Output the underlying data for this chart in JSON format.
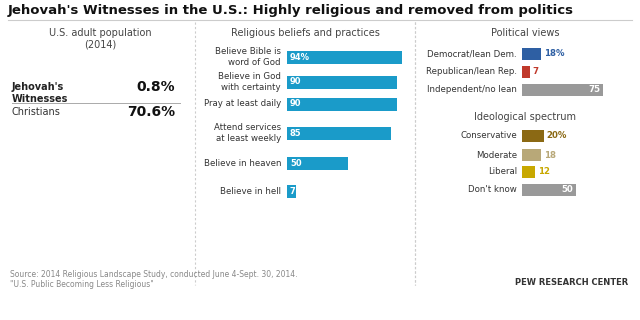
{
  "title": "Jehovah's Witnesses in the U.S.: Highly religious and removed from politics",
  "background_color": "#ffffff",
  "left_panel": {
    "header": "U.S. adult population\n(2014)",
    "rows": [
      {
        "label": "Jehovah's\nWitnesses",
        "value": "0.8%"
      },
      {
        "label": "Christians",
        "value": "70.6%"
      }
    ]
  },
  "mid_panel": {
    "header": "Religious beliefs and practices",
    "bars": [
      {
        "label": "Believe Bible is\nword of God",
        "value": 94,
        "display": "94%"
      },
      {
        "label": "Believe in God\nwith certainty",
        "value": 90,
        "display": "90"
      },
      {
        "label": "Pray at least daily",
        "value": 90,
        "display": "90"
      },
      {
        "label": "Attend services\nat least weekly",
        "value": 85,
        "display": "85"
      },
      {
        "label": "Believe in heaven",
        "value": 50,
        "display": "50"
      },
      {
        "label": "Believe in hell",
        "value": 7,
        "display": "7"
      }
    ],
    "bar_color": "#1a9bc9",
    "max_val": 100
  },
  "right_panel": {
    "political_header": "Political views",
    "political_bars": [
      {
        "label": "Democrat/lean Dem.",
        "value": 18,
        "display": "18%",
        "bar_color": "#2e5fa3",
        "text_color": "#2e5fa3",
        "text_inside": false
      },
      {
        "label": "Republican/lean Rep.",
        "value": 7,
        "display": "7",
        "bar_color": "#c0392b",
        "text_color": "#c0392b",
        "text_inside": false
      },
      {
        "label": "Independent/no lean",
        "value": 75,
        "display": "75",
        "bar_color": "#999999",
        "text_color": "#ffffff",
        "text_inside": true
      }
    ],
    "ideo_header": "Ideological spectrum",
    "ideo_bars": [
      {
        "label": "Conservative",
        "value": 20,
        "display": "20%",
        "bar_color": "#8b6914",
        "text_color": "#8b6914",
        "text_inside": false
      },
      {
        "label": "Moderate",
        "value": 18,
        "display": "18",
        "bar_color": "#b8a878",
        "text_color": "#b8a878",
        "text_inside": false
      },
      {
        "label": "Liberal",
        "value": 12,
        "display": "12",
        "bar_color": "#c8a800",
        "text_color": "#c8a800",
        "text_inside": false
      },
      {
        "label": "Don't know",
        "value": 50,
        "display": "50",
        "bar_color": "#999999",
        "text_color": "#ffffff",
        "text_inside": true
      }
    ],
    "max_val": 100
  },
  "source_text": "Source: 2014 Religious Landscape Study, conducted June 4-Sept. 30, 2014.\n\"U.S. Public Becoming Less Religious\"",
  "pew_text": "PEW RESEARCH CENTER"
}
